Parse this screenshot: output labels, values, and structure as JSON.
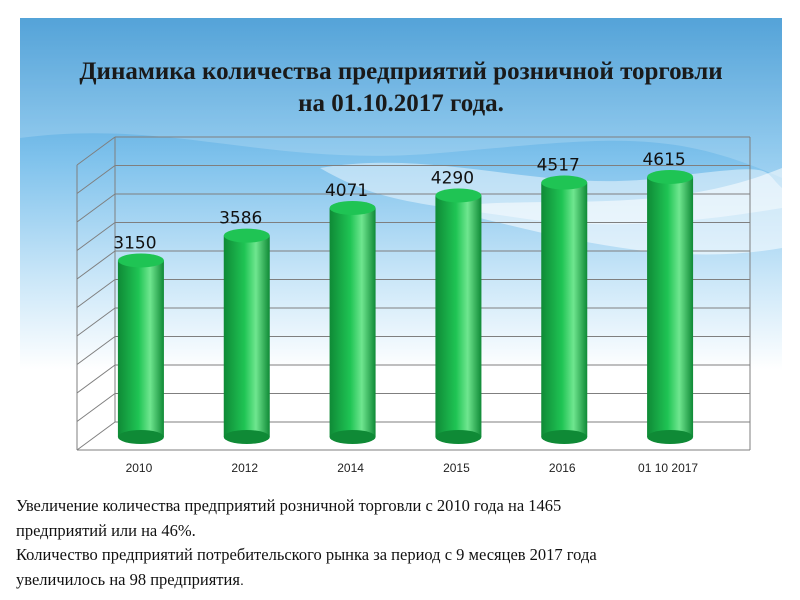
{
  "slide": {
    "title_line1": "Динамика количества предприятий розничной торговли",
    "title_line2": "на 01.10.2017 года."
  },
  "colors": {
    "bar": "#1fc454",
    "bar_dark": "#0f8a36",
    "bar_light": "#6fe68f",
    "grid": "#7f7f7f",
    "background_top": "#2f8fd0"
  },
  "chart_data": {
    "type": "bar",
    "categories": [
      "2010",
      "2012",
      "2014",
      "2015",
      "2016",
      "01 10 2017"
    ],
    "values": [
      3150,
      3586,
      4071,
      4290,
      4517,
      4615
    ],
    "title": "",
    "xlabel": "",
    "ylabel": "",
    "ylim": [
      0,
      5000
    ],
    "grid": true,
    "legend": "none",
    "data_labels": true
  },
  "caption": {
    "line1": "Увеличение количества предприятий розничной торговли с 2010 года на  1465",
    "line2": "предприятий или на 46%.",
    "line3": "Количество предприятий потребительского рынка за период с 9 месяцев 2017 года",
    "line4_main": "увеличилось на 98 предприятия",
    "line4_end": "."
  }
}
